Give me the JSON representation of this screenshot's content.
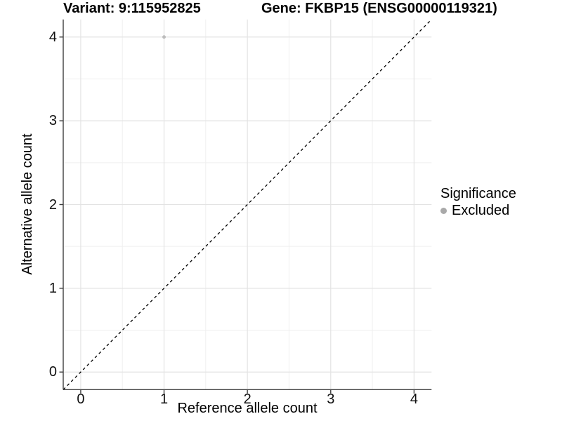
{
  "titles": {
    "variant": "Variant: 9:115952825",
    "gene": "Gene: FKBP15 (ENSG00000119321)"
  },
  "axes": {
    "x_label": "Reference allele count",
    "y_label": "Alternative allele count"
  },
  "legend": {
    "title": "Significance",
    "position": "right",
    "items": [
      {
        "label": "Excluded",
        "color": "#a9a9a9"
      }
    ]
  },
  "chart_data": {
    "type": "scatter",
    "title": "Variant: 9:115952825   Gene: FKBP15 (ENSG00000119321)",
    "xlabel": "Reference allele count",
    "ylabel": "Alternative allele count",
    "xlim": [
      -0.21,
      4.21
    ],
    "ylim": [
      -0.21,
      4.21
    ],
    "xticks": [
      0,
      1,
      2,
      3,
      4
    ],
    "yticks": [
      0,
      1,
      2,
      3,
      4
    ],
    "x_minor": [
      0.5,
      1.5,
      2.5,
      3.5
    ],
    "y_minor": [
      0.5,
      1.5,
      2.5,
      3.5
    ],
    "grid": true,
    "legend_position": "right",
    "series": [
      {
        "name": "Excluded",
        "color": "#bdbdbd",
        "points": [
          {
            "x": 1,
            "y": 4
          }
        ]
      }
    ],
    "identity_line": {
      "style": "dashed",
      "from": -0.21,
      "to": 4.21,
      "color": "#000000"
    },
    "colors": {
      "grid_major": "#e3e3e3",
      "grid_minor": "#efefef",
      "axis": "#3f3f3f",
      "background": "#ffffff"
    }
  }
}
